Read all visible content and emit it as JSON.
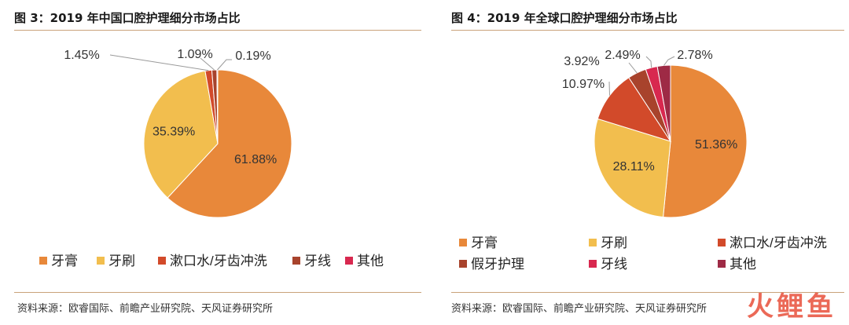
{
  "left_panel": {
    "title": "图 3：2019 年中国口腔护理细分市场占比",
    "source": "资料来源：欧睿国际、前瞻产业研究院、天风证券研究所"
  },
  "right_panel": {
    "title": "图 4：2019 年全球口腔护理细分市场占比",
    "source": "资料来源：欧睿国际、前瞻产业研究院、天风证券研究所"
  },
  "watermark": "火鲤鱼",
  "chart_data": [
    {
      "type": "pie",
      "title": "图 3：2019 年中国口腔护理细分市场占比",
      "legend_position": "bottom",
      "slices": [
        {
          "label": "牙膏",
          "value": 61.88,
          "display": "61.88%",
          "color": "#E8883A"
        },
        {
          "label": "牙刷",
          "value": 35.39,
          "display": "35.39%",
          "color": "#F2BE4E"
        },
        {
          "label": "漱口水/牙齿冲洗",
          "value": 1.45,
          "display": "1.45%",
          "color": "#D24A2A"
        },
        {
          "label": "牙线",
          "value": 1.09,
          "display": "1.09%",
          "color": "#A8432C"
        },
        {
          "label": "其他",
          "value": 0.19,
          "display": "0.19%",
          "color": "#D8284F"
        }
      ]
    },
    {
      "type": "pie",
      "title": "图 4：2019 年全球口腔护理细分市场占比",
      "legend_position": "bottom",
      "slices": [
        {
          "label": "牙膏",
          "value": 51.36,
          "display": "51.36%",
          "color": "#E8883A"
        },
        {
          "label": "牙刷",
          "value": 28.11,
          "display": "28.11%",
          "color": "#F2BE4E"
        },
        {
          "label": "漱口水/牙齿冲洗",
          "value": 10.97,
          "display": "10.97%",
          "color": "#D24A2A"
        },
        {
          "label": "假牙护理",
          "value": 3.92,
          "display": "3.92%",
          "color": "#A8432C"
        },
        {
          "label": "牙线",
          "value": 2.49,
          "display": "2.49%",
          "color": "#D8284F"
        },
        {
          "label": "其他",
          "value": 2.78,
          "display": "2.78%",
          "color": "#9E2A45"
        }
      ]
    }
  ]
}
